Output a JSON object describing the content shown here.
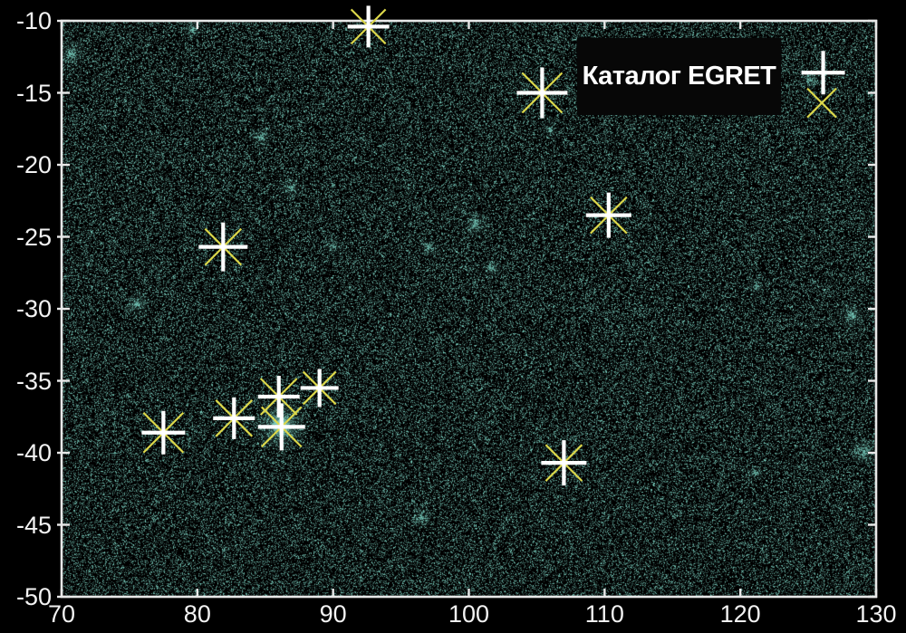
{
  "chart_data": {
    "type": "scatter",
    "title": "Каталог EGRET",
    "xlabel": "",
    "ylabel": "",
    "xlim": [
      70,
      130
    ],
    "ylim": [
      -50,
      -10
    ],
    "grid": false,
    "legend_position": "top-right",
    "x_tick_values": [
      70,
      80,
      90,
      100,
      110,
      120,
      130
    ],
    "x_tick_labels": [
      "70",
      "80",
      "90",
      "100",
      "110",
      "120",
      "130"
    ],
    "y_tick_values": [
      -10,
      -15,
      -20,
      -25,
      -30,
      -35,
      -40,
      -45,
      -50
    ],
    "y_tick_labels": [
      "-10",
      "-15",
      "-20",
      "-25",
      "-30",
      "-35",
      "-40",
      "-45",
      "-50"
    ],
    "sources": [
      {
        "x": 92.6,
        "y": -10.4,
        "plus": 46,
        "cross": 38
      },
      {
        "x": 105.4,
        "y": -15.0,
        "plus": 56,
        "cross": 44
      },
      {
        "x": 126.1,
        "y": -13.6,
        "plus": 48,
        "cross": 0
      },
      {
        "x": 126.0,
        "y": -15.7,
        "plus": 0,
        "cross": 32
      },
      {
        "x": 110.3,
        "y": -23.5,
        "plus": 50,
        "cross": 40
      },
      {
        "x": 81.9,
        "y": -25.7,
        "plus": 54,
        "cross": 40
      },
      {
        "x": 77.5,
        "y": -38.6,
        "plus": 48,
        "cross": 44
      },
      {
        "x": 82.7,
        "y": -37.6,
        "plus": 46,
        "cross": 40
      },
      {
        "x": 86.0,
        "y": -36.1,
        "plus": 46,
        "cross": 40
      },
      {
        "x": 86.2,
        "y": -38.2,
        "plus": 52,
        "cross": 44
      },
      {
        "x": 89.0,
        "y": -35.5,
        "plus": 42,
        "cross": 36
      },
      {
        "x": 107.0,
        "y": -40.7,
        "plus": 50,
        "cross": 40
      }
    ],
    "diffuse_sources": [
      {
        "x": 70.7,
        "y": -12.3,
        "r": 9,
        "i": 0.5
      },
      {
        "x": 79.7,
        "y": -10.6,
        "r": 6,
        "i": 0.5
      },
      {
        "x": 84.7,
        "y": -18.1,
        "r": 7,
        "i": 0.45
      },
      {
        "x": 86.8,
        "y": -21.6,
        "r": 7,
        "i": 0.45
      },
      {
        "x": 75.6,
        "y": -29.7,
        "r": 8,
        "i": 0.5
      },
      {
        "x": 90.0,
        "y": -25.7,
        "r": 6,
        "i": 0.4
      },
      {
        "x": 97.0,
        "y": -25.7,
        "r": 6,
        "i": 0.4
      },
      {
        "x": 100.5,
        "y": -24.1,
        "r": 8,
        "i": 0.55
      },
      {
        "x": 101.7,
        "y": -27.2,
        "r": 6,
        "i": 0.4
      },
      {
        "x": 86.2,
        "y": -38.1,
        "r": 16,
        "i": 1.0
      },
      {
        "x": 96.5,
        "y": -44.5,
        "r": 7,
        "i": 0.5
      },
      {
        "x": 121.2,
        "y": -28.4,
        "r": 5,
        "i": 0.45
      },
      {
        "x": 128.2,
        "y": -30.5,
        "r": 8,
        "i": 0.6
      },
      {
        "x": 129.1,
        "y": -39.9,
        "r": 9,
        "i": 0.65
      },
      {
        "x": 121.1,
        "y": -41.4,
        "r": 5,
        "i": 0.45
      },
      {
        "x": 106.0,
        "y": -17.5,
        "r": 5,
        "i": 0.35
      },
      {
        "x": 125.2,
        "y": -14.1,
        "r": 6,
        "i": 0.5
      }
    ],
    "noise": {
      "density": 0.36,
      "seed": 1234567,
      "base_rgb": [
        126,
        214,
        198
      ]
    }
  },
  "colors": {
    "background": "#000000",
    "noise_dots": "#7ed6c6",
    "marker_plus": "#ffffff",
    "marker_cross": "#dcd84a",
    "axis": "#e8e8e8",
    "tick_text": "#f2f2f2",
    "title_box_bg": "#070707",
    "title_text": "#ffffff"
  }
}
